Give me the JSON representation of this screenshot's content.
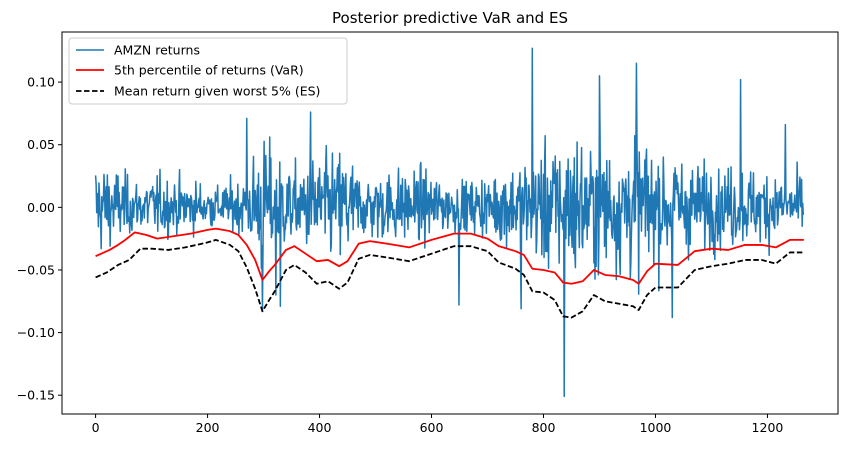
{
  "chart_data": {
    "type": "line",
    "title": "Posterior predictive VaR and ES",
    "xlabel": "",
    "ylabel": "",
    "xlim": [
      -60,
      1326
    ],
    "ylim": [
      -0.165,
      0.14
    ],
    "xticks": [
      0,
      200,
      400,
      600,
      800,
      1000,
      1200
    ],
    "yticks": [
      -0.15,
      -0.1,
      -0.05,
      0.0,
      0.05,
      0.1
    ],
    "ytick_labels": [
      "−0.15",
      "−0.10",
      "−0.05",
      "0.00",
      "0.05",
      "0.10"
    ],
    "grid": false,
    "legend_placement": "top-left",
    "n_points": 1265,
    "series": [
      {
        "name": "AMZN returns",
        "color": "#1f77b4",
        "style": "solid",
        "y_range": [
          -0.151,
          0.127
        ],
        "extreme_points": [
          {
            "x": 837,
            "y": -0.151
          },
          {
            "x": 780,
            "y": 0.127
          },
          {
            "x": 384,
            "y": 0.076
          },
          {
            "x": 270,
            "y": 0.071
          },
          {
            "x": 900,
            "y": 0.105
          },
          {
            "x": 966,
            "y": 0.115
          },
          {
            "x": 1152,
            "y": 0.102
          },
          {
            "x": 1232,
            "y": 0.066
          },
          {
            "x": 298,
            "y": -0.083
          },
          {
            "x": 330,
            "y": -0.079
          },
          {
            "x": 322,
            "y": -0.07
          },
          {
            "x": 649,
            "y": -0.078
          },
          {
            "x": 760,
            "y": -0.081
          },
          {
            "x": 1030,
            "y": -0.088
          }
        ]
      },
      {
        "name": "5th percentile of returns (VaR)",
        "color": "#ff0000",
        "style": "solid",
        "points": [
          [
            0,
            -0.039
          ],
          [
            25,
            -0.034
          ],
          [
            40,
            -0.03
          ],
          [
            50,
            -0.027
          ],
          [
            70,
            -0.02
          ],
          [
            90,
            -0.022
          ],
          [
            110,
            -0.025
          ],
          [
            140,
            -0.023
          ],
          [
            170,
            -0.021
          ],
          [
            200,
            -0.018
          ],
          [
            215,
            -0.017
          ],
          [
            240,
            -0.019
          ],
          [
            255,
            -0.022
          ],
          [
            270,
            -0.03
          ],
          [
            285,
            -0.042
          ],
          [
            298,
            -0.058
          ],
          [
            310,
            -0.051
          ],
          [
            320,
            -0.046
          ],
          [
            340,
            -0.034
          ],
          [
            355,
            -0.031
          ],
          [
            375,
            -0.037
          ],
          [
            395,
            -0.043
          ],
          [
            415,
            -0.042
          ],
          [
            435,
            -0.047
          ],
          [
            450,
            -0.043
          ],
          [
            470,
            -0.029
          ],
          [
            490,
            -0.027
          ],
          [
            520,
            -0.029
          ],
          [
            560,
            -0.032
          ],
          [
            600,
            -0.026
          ],
          [
            640,
            -0.021
          ],
          [
            670,
            -0.021
          ],
          [
            700,
            -0.025
          ],
          [
            720,
            -0.031
          ],
          [
            750,
            -0.035
          ],
          [
            765,
            -0.038
          ],
          [
            780,
            -0.049
          ],
          [
            800,
            -0.05
          ],
          [
            820,
            -0.052
          ],
          [
            835,
            -0.06
          ],
          [
            850,
            -0.061
          ],
          [
            870,
            -0.059
          ],
          [
            890,
            -0.05
          ],
          [
            910,
            -0.054
          ],
          [
            935,
            -0.055
          ],
          [
            960,
            -0.058
          ],
          [
            970,
            -0.061
          ],
          [
            985,
            -0.051
          ],
          [
            1000,
            -0.045
          ],
          [
            1040,
            -0.046
          ],
          [
            1070,
            -0.035
          ],
          [
            1100,
            -0.033
          ],
          [
            1130,
            -0.034
          ],
          [
            1160,
            -0.03
          ],
          [
            1190,
            -0.03
          ],
          [
            1215,
            -0.032
          ],
          [
            1240,
            -0.026
          ],
          [
            1265,
            -0.026
          ]
        ]
      },
      {
        "name": "Mean return given worst 5% (ES)",
        "color": "#000000",
        "style": "dashed",
        "points": [
          [
            0,
            -0.056
          ],
          [
            20,
            -0.052
          ],
          [
            40,
            -0.046
          ],
          [
            60,
            -0.042
          ],
          [
            80,
            -0.033
          ],
          [
            100,
            -0.033
          ],
          [
            130,
            -0.034
          ],
          [
            160,
            -0.032
          ],
          [
            200,
            -0.028
          ],
          [
            215,
            -0.026
          ],
          [
            240,
            -0.03
          ],
          [
            255,
            -0.035
          ],
          [
            270,
            -0.048
          ],
          [
            285,
            -0.065
          ],
          [
            298,
            -0.083
          ],
          [
            310,
            -0.074
          ],
          [
            320,
            -0.067
          ],
          [
            340,
            -0.05
          ],
          [
            355,
            -0.046
          ],
          [
            375,
            -0.052
          ],
          [
            395,
            -0.061
          ],
          [
            415,
            -0.059
          ],
          [
            435,
            -0.065
          ],
          [
            450,
            -0.06
          ],
          [
            470,
            -0.041
          ],
          [
            490,
            -0.038
          ],
          [
            520,
            -0.04
          ],
          [
            560,
            -0.043
          ],
          [
            600,
            -0.037
          ],
          [
            640,
            -0.031
          ],
          [
            670,
            -0.031
          ],
          [
            700,
            -0.035
          ],
          [
            720,
            -0.044
          ],
          [
            750,
            -0.049
          ],
          [
            765,
            -0.054
          ],
          [
            780,
            -0.067
          ],
          [
            800,
            -0.068
          ],
          [
            820,
            -0.074
          ],
          [
            835,
            -0.087
          ],
          [
            850,
            -0.088
          ],
          [
            870,
            -0.083
          ],
          [
            890,
            -0.07
          ],
          [
            910,
            -0.075
          ],
          [
            935,
            -0.077
          ],
          [
            960,
            -0.079
          ],
          [
            970,
            -0.082
          ],
          [
            985,
            -0.07
          ],
          [
            1000,
            -0.064
          ],
          [
            1040,
            -0.064
          ],
          [
            1070,
            -0.05
          ],
          [
            1100,
            -0.047
          ],
          [
            1130,
            -0.045
          ],
          [
            1160,
            -0.042
          ],
          [
            1190,
            -0.042
          ],
          [
            1215,
            -0.045
          ],
          [
            1240,
            -0.036
          ],
          [
            1265,
            -0.036
          ]
        ]
      }
    ]
  }
}
